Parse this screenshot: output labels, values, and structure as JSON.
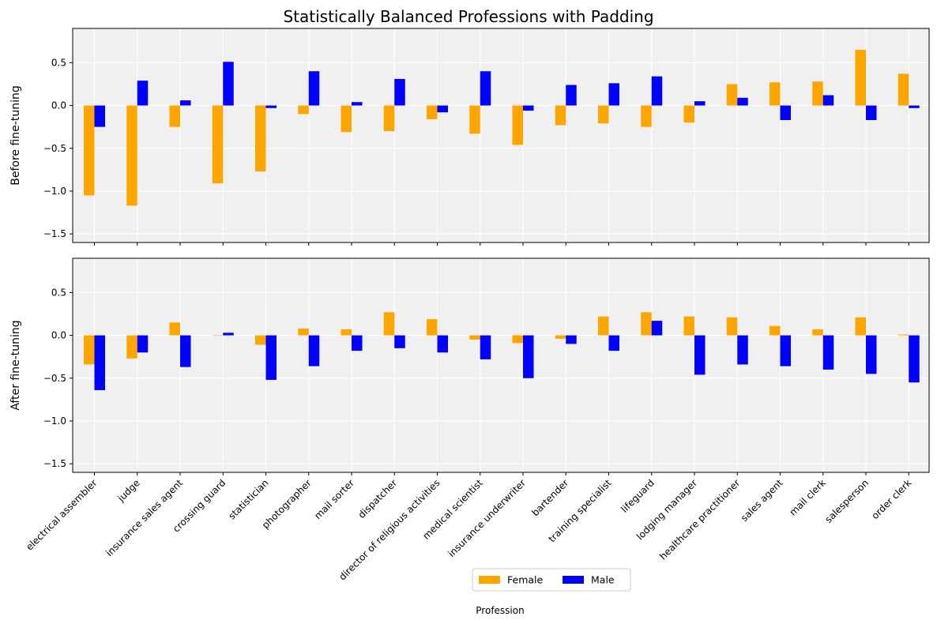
{
  "chart_data": {
    "type": "bar",
    "title": "Statistically Balanced Professions with Padding",
    "xlabel": "Profession",
    "categories": [
      "electrical assembler",
      "judge",
      "insurance sales agent",
      "crossing guard",
      "statistician",
      "photographer",
      "mail sorter",
      "dispatcher",
      "director of religious activities",
      "medical scientist",
      "insurance underwriter",
      "bartender",
      "training specialist",
      "lifeguard",
      "lodging manager",
      "healthcare practitioner",
      "sales agent",
      "mail clerk",
      "salesperson",
      "order clerk"
    ],
    "legend": {
      "placement": "lower-center",
      "entries": [
        "Female",
        "Male"
      ]
    },
    "colors": {
      "Female": "#FFA500",
      "Male": "#0000FF",
      "axes_bg": "#F0F0F0",
      "grid": "#FFFFFF"
    },
    "panels": [
      {
        "ylabel": "Before fine-tuning",
        "ylim": [
          -1.6,
          0.9
        ],
        "yticks": [
          "0.5",
          "0.0",
          "−0.5",
          "−1.0",
          "−1.5"
        ],
        "ytick_values": [
          0.5,
          0.0,
          -0.5,
          -1.0,
          -1.5
        ],
        "grid": true,
        "series": [
          {
            "name": "Female",
            "values": [
              -1.05,
              -1.17,
              -0.25,
              -0.91,
              -0.77,
              -0.1,
              -0.31,
              -0.3,
              -0.16,
              -0.33,
              -0.46,
              -0.23,
              -0.21,
              -0.25,
              -0.2,
              0.25,
              0.27,
              0.28,
              0.65,
              0.37
            ]
          },
          {
            "name": "Male",
            "values": [
              -0.25,
              0.29,
              0.06,
              0.51,
              -0.03,
              0.4,
              0.04,
              0.31,
              -0.08,
              0.4,
              -0.06,
              0.24,
              0.26,
              0.34,
              0.05,
              0.09,
              -0.17,
              0.12,
              -0.17,
              -0.03
            ]
          }
        ]
      },
      {
        "ylabel": "After fine-tuning",
        "ylim": [
          -1.6,
          0.9
        ],
        "yticks": [
          "0.5",
          "0.0",
          "−0.5",
          "−1.0",
          "−1.5"
        ],
        "ytick_values": [
          0.5,
          0.0,
          -0.5,
          -1.0,
          -1.5
        ],
        "grid": true,
        "series": [
          {
            "name": "Female",
            "values": [
              -0.34,
              -0.27,
              0.15,
              0.0,
              -0.11,
              0.08,
              0.07,
              0.27,
              0.19,
              -0.05,
              -0.09,
              -0.04,
              0.22,
              0.27,
              0.22,
              0.21,
              0.11,
              0.07,
              0.21,
              0.01
            ]
          },
          {
            "name": "Male",
            "values": [
              -0.64,
              -0.2,
              -0.37,
              0.03,
              -0.52,
              -0.36,
              -0.18,
              -0.15,
              -0.2,
              -0.28,
              -0.5,
              -0.1,
              -0.18,
              0.17,
              -0.46,
              -0.34,
              -0.36,
              -0.4,
              -0.45,
              -0.55
            ]
          }
        ]
      }
    ]
  }
}
